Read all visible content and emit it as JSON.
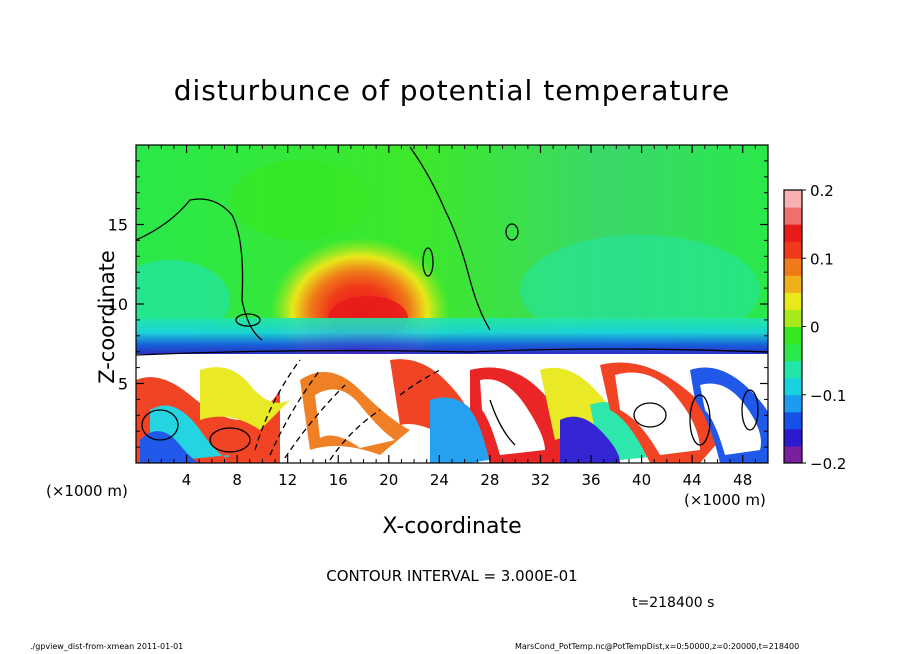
{
  "chart_data": {
    "type": "heatmap",
    "title": "disturbunce of potential temperature",
    "xlabel": "X-coordinate",
    "ylabel": "Z-coordinate",
    "x_unit_left": "(×1000 m)",
    "x_unit_right": "(×1000 m)",
    "xlim": [
      0,
      50
    ],
    "ylim": [
      0,
      20
    ],
    "x_ticks": [
      4,
      8,
      12,
      16,
      20,
      24,
      28,
      32,
      36,
      40,
      44,
      48
    ],
    "y_ticks": [
      5,
      10,
      15
    ],
    "colorbar": {
      "ticks": [
        {
          "value": 0.2,
          "label": "0.2"
        },
        {
          "value": 0.1,
          "label": "0.1"
        },
        {
          "value": 0,
          "label": "0"
        },
        {
          "value": -0.1,
          "label": "−0.1"
        },
        {
          "value": -0.2,
          "label": "−0.2"
        }
      ],
      "range": [
        -0.2,
        0.2
      ],
      "colors": [
        "#7a1fa0",
        "#2a1bd0",
        "#1550e8",
        "#1a9cf0",
        "#19d2e0",
        "#22e6a8",
        "#2ae84a",
        "#36e81e",
        "#a6ea1a",
        "#e8e81a",
        "#f0b01a",
        "#f07a1a",
        "#f03a1a",
        "#e81a1a",
        "#f07070",
        "#f8b0b0"
      ]
    },
    "contour_interval": "CONTOUR INTERVAL = 3.000E-01",
    "time": "t=218400 s",
    "grid": false
  },
  "footer": {
    "left": "./gpview_dist-from-xmean  2011-01-01",
    "right": "MarsCond_PotTemp.nc@PotTempDist,x=0:50000,z=0:20000,t=218400"
  }
}
